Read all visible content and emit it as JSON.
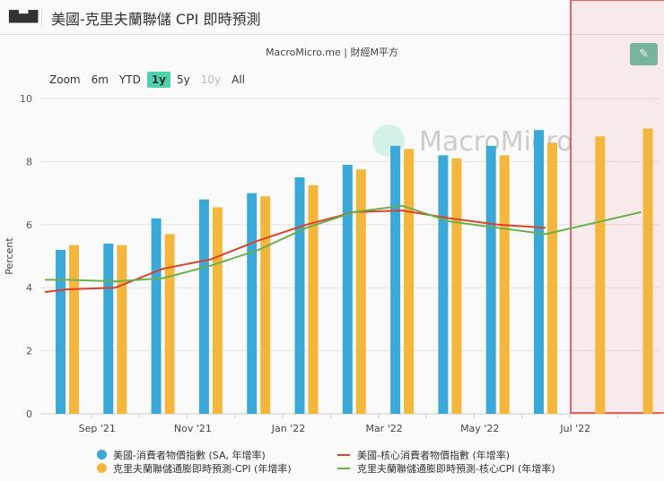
{
  "header": {
    "title": "美國-克里夫蘭聯儲 CPI 即時預測",
    "icon": "bar-chart-icon"
  },
  "source": "MacroMicro.me | 財經M平方",
  "watermark": "MacroMicro",
  "zoom": {
    "label": "Zoom",
    "options": [
      "6m",
      "YTD",
      "1y",
      "5y",
      "10y",
      "All"
    ],
    "active": "1y",
    "disabled": [
      "10y"
    ]
  },
  "edit_icon": "pencil-icon",
  "chart_data": {
    "type": "bar+line",
    "ylabel": "Percent",
    "ylim": [
      0,
      10
    ],
    "yticks": [
      "0",
      "2",
      "4",
      "6",
      "8",
      "10"
    ],
    "x": [
      "2021-08",
      "2021-09",
      "2021-10",
      "2021-11",
      "2021-12",
      "2022-01",
      "2022-02",
      "2022-03",
      "2022-04",
      "2022-05",
      "2022-06",
      "2022-07",
      "2022-08"
    ],
    "xtick_labels": {
      "2021-09": "Sep '21",
      "2021-11": "Nov '21",
      "2022-01": "Jan '22",
      "2022-03": "Mar '22",
      "2022-05": "May '22",
      "2022-07": "Jul '22"
    },
    "series": [
      {
        "name": "美國-消費者物價指數 (SA, 年增率)",
        "type": "bar",
        "color": "#3aa9d8",
        "values": [
          5.2,
          5.4,
          6.2,
          6.8,
          7.0,
          7.5,
          7.9,
          8.5,
          8.2,
          8.5,
          9.0,
          null,
          null
        ]
      },
      {
        "name": "克里夫蘭聯儲通膨即時預測-CPI (年增率)",
        "type": "bar",
        "color": "#f5b73b",
        "values": [
          5.35,
          5.35,
          5.7,
          6.55,
          6.9,
          7.25,
          7.75,
          8.4,
          8.1,
          8.2,
          8.6,
          8.8,
          9.05
        ]
      },
      {
        "name": "美國-核心消費者物價指數 (年增率)",
        "type": "line",
        "color": "#d9432b",
        "values": [
          3.95,
          4.0,
          4.6,
          4.9,
          5.5,
          6.0,
          6.4,
          6.45,
          6.2,
          6.0,
          5.9,
          null,
          null
        ]
      },
      {
        "name": "克里夫蘭聯儲通膨即時預測-核心CPI (年增率)",
        "type": "line",
        "color": "#6ab04c",
        "values": [
          4.25,
          4.2,
          4.3,
          4.7,
          5.2,
          5.9,
          6.4,
          6.6,
          6.1,
          5.9,
          5.7,
          6.05,
          6.4
        ]
      }
    ],
    "grid": true,
    "legend": "bottom",
    "highlight": {
      "from": "2022-06",
      "to": "2022-08",
      "color": "#e53935"
    }
  }
}
